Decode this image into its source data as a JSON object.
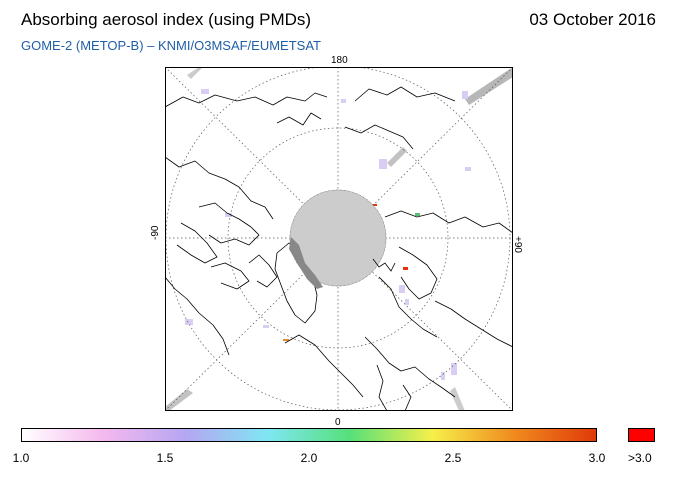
{
  "header": {
    "title": "Absorbing aerosol index (using PMDs)",
    "date": "03 October 2016",
    "subtitle": "GOME-2 (METOP-B)  –   KNMI/O3MSAF/EUMETSAT"
  },
  "map": {
    "projection": "north polar stereographic",
    "longitude_labels": {
      "top": "180",
      "bottom": "0",
      "left": "-90",
      "right": "+90"
    },
    "colors": {
      "coastline": "#000000",
      "graticule": "#555555",
      "no_data": "#cccccc",
      "swath_gap": "#888888"
    }
  },
  "legend": {
    "tick_labels": [
      "1.0",
      "1.5",
      "2.0",
      "2.5",
      "3.0"
    ],
    "tick_values": [
      1.0,
      1.5,
      2.0,
      2.5,
      3.0
    ],
    "range": [
      1.0,
      3.0
    ],
    "over_label": ">3.0",
    "gradient_colors": [
      "#ffffff",
      "#f4b8ee",
      "#b5a6f2",
      "#7fe6f3",
      "#56e07a",
      "#f6f04a",
      "#f08a1e",
      "#e03a0a"
    ],
    "over_color": "#ff0000"
  }
}
